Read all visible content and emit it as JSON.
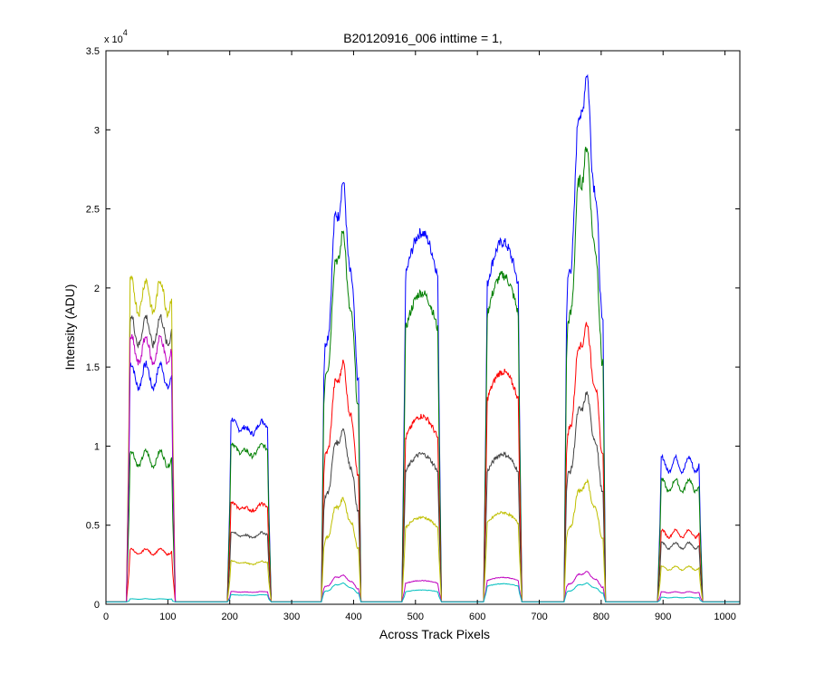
{
  "chart_data": {
    "type": "line",
    "title": "B20120916_006 inttime = 1,",
    "xlabel": "Across Track Pixels",
    "ylabel": "Intensity (ADU)",
    "y_multiplier_label": "x 10",
    "y_multiplier_exponent": "4",
    "xlim": [
      0,
      1024
    ],
    "ylim": [
      0,
      35000
    ],
    "xticks": [
      0,
      100,
      200,
      300,
      400,
      500,
      600,
      700,
      800,
      900,
      1000
    ],
    "yticks": [
      0,
      5000,
      10000,
      15000,
      20000,
      25000,
      30000,
      35000
    ],
    "xtick_labels": [
      "0",
      "100",
      "200",
      "300",
      "400",
      "500",
      "600",
      "700",
      "800",
      "900",
      "1000"
    ],
    "ytick_labels": [
      "0",
      "0.5",
      "1",
      "1.5",
      "2",
      "2.5",
      "3",
      "3.5"
    ],
    "grid": false,
    "legend": "none",
    "baseline": 150,
    "blocks": [
      {
        "x": [
          35,
          110
        ],
        "shape": "flat"
      },
      {
        "x": [
          198,
          265
        ],
        "shape": "bump"
      },
      {
        "x": [
          350,
          410
        ],
        "shape": "peak"
      },
      {
        "x": [
          480,
          540
        ],
        "shape": "round"
      },
      {
        "x": [
          612,
          670
        ],
        "shape": "round"
      },
      {
        "x": [
          742,
          805
        ],
        "shape": "peak"
      },
      {
        "x": [
          893,
          962
        ],
        "shape": "flat"
      }
    ],
    "series": [
      {
        "color": "#0000ff",
        "levels": [
          15200,
          11500,
          26000,
          23500,
          22900,
          32700,
          9300
        ]
      },
      {
        "color": "#007f00",
        "levels": [
          9700,
          10000,
          23000,
          19700,
          20800,
          28200,
          7900
        ]
      },
      {
        "color": "#ff0000",
        "levels": [
          3500,
          6300,
          14900,
          11900,
          14700,
          17300,
          4700
        ]
      },
      {
        "color": "#444444",
        "levels": [
          18200,
          4500,
          10800,
          9500,
          9500,
          13000,
          3900
        ]
      },
      {
        "color": "#bfbf00",
        "levels": [
          20500,
          2700,
          6500,
          5500,
          5800,
          7600,
          2400
        ]
      },
      {
        "color": "#bf00bf",
        "levels": [
          16900,
          800,
          1800,
          1500,
          1700,
          2000,
          800
        ]
      },
      {
        "color": "#00bfbf",
        "levels": [
          350,
          600,
          1300,
          900,
          1300,
          1300,
          450
        ]
      }
    ]
  }
}
